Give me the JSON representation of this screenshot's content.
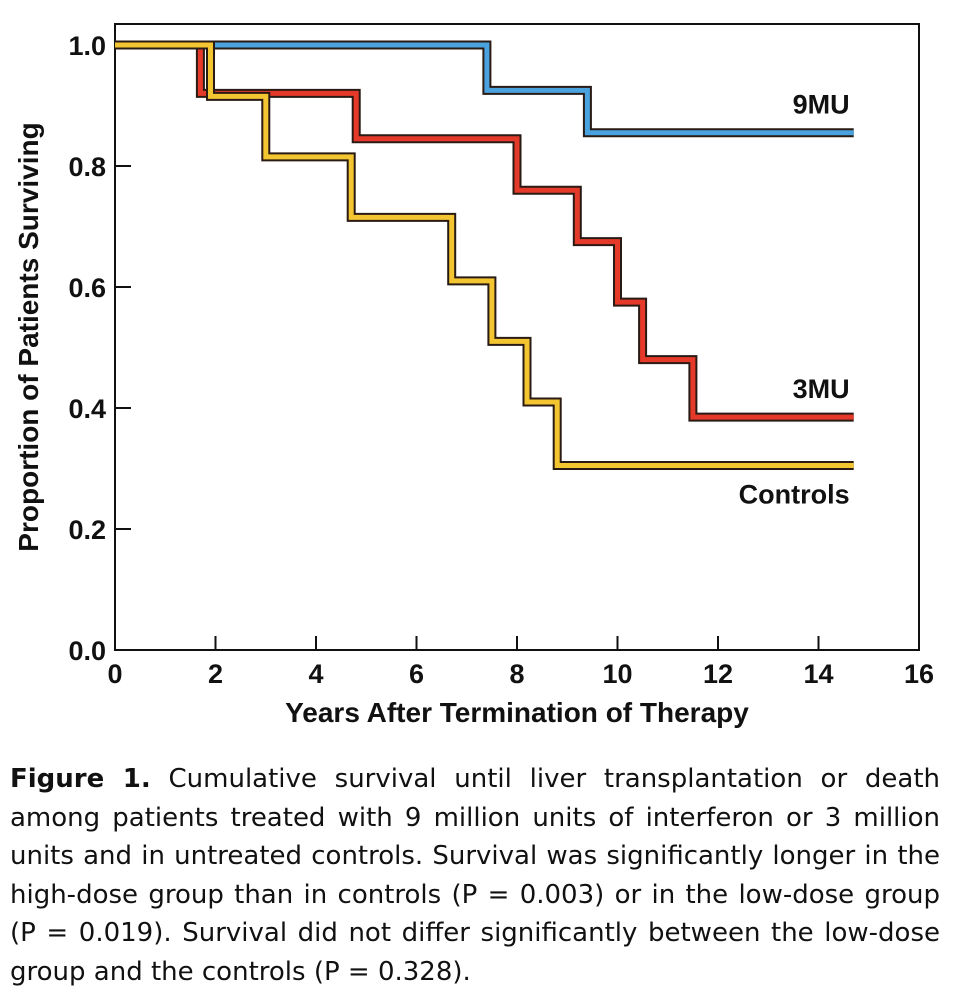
{
  "chart_data": {
    "type": "line",
    "step": true,
    "xlabel": "Years After Termination of Therapy",
    "ylabel": "Proportion of Patients Surviving",
    "xlim": [
      0,
      16
    ],
    "ylim": [
      0,
      1.0
    ],
    "xticks": [
      "0",
      "2",
      "4",
      "6",
      "8",
      "10",
      "12",
      "14",
      "16"
    ],
    "yticks": [
      "0.0",
      "0.2",
      "0.4",
      "0.6",
      "0.8",
      "1.0"
    ],
    "grid": false,
    "series": [
      {
        "name": "9MU",
        "color": "#4aa3df",
        "points": [
          [
            0,
            1.0
          ],
          [
            7.4,
            1.0
          ],
          [
            7.4,
            0.925
          ],
          [
            9.4,
            0.925
          ],
          [
            9.4,
            0.855
          ],
          [
            14.7,
            0.855
          ]
        ]
      },
      {
        "name": "3MU",
        "color": "#e53a2a",
        "points": [
          [
            0,
            1.0
          ],
          [
            1.7,
            1.0
          ],
          [
            1.7,
            0.92
          ],
          [
            4.8,
            0.92
          ],
          [
            4.8,
            0.845
          ],
          [
            8.0,
            0.845
          ],
          [
            8.0,
            0.76
          ],
          [
            9.2,
            0.76
          ],
          [
            9.2,
            0.675
          ],
          [
            10.0,
            0.675
          ],
          [
            10.0,
            0.575
          ],
          [
            10.5,
            0.575
          ],
          [
            10.5,
            0.48
          ],
          [
            11.5,
            0.48
          ],
          [
            11.5,
            0.385
          ],
          [
            14.7,
            0.385
          ]
        ]
      },
      {
        "name": "Controls",
        "color": "#f2c531",
        "points": [
          [
            0,
            1.0
          ],
          [
            1.9,
            1.0
          ],
          [
            1.9,
            0.915
          ],
          [
            3.0,
            0.915
          ],
          [
            3.0,
            0.815
          ],
          [
            4.7,
            0.815
          ],
          [
            4.7,
            0.715
          ],
          [
            6.7,
            0.715
          ],
          [
            6.7,
            0.61
          ],
          [
            7.5,
            0.61
          ],
          [
            7.5,
            0.51
          ],
          [
            8.2,
            0.51
          ],
          [
            8.2,
            0.41
          ],
          [
            8.8,
            0.41
          ],
          [
            8.8,
            0.305
          ],
          [
            14.7,
            0.305
          ]
        ]
      }
    ]
  },
  "caption": {
    "label": "Figure 1.",
    "text": " Cumulative survival until liver transplantation or death among patients treated with 9 million units of interferon or 3 million units and in untreated controls. Survival was significantly longer in the high-dose group than in controls (P = 0.003) or in the low-dose group (P = 0.019). Survival did not differ significantly between the low-dose group and the controls (P = 0.328)."
  }
}
